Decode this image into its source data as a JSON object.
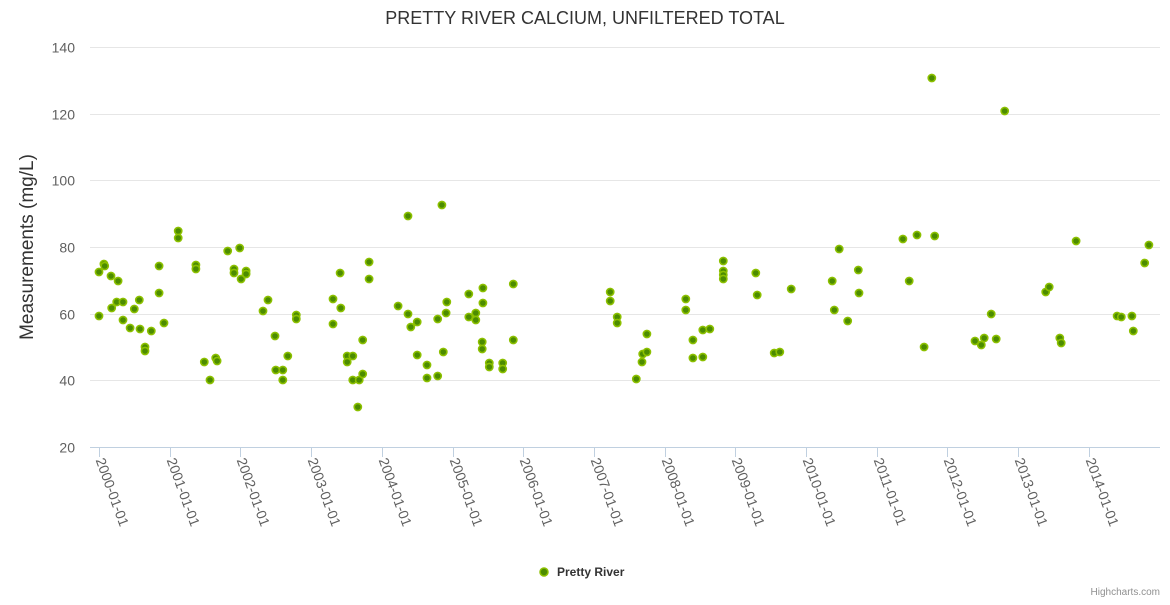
{
  "chart_data": {
    "type": "scatter",
    "title": "PRETTY RIVER CALCIUM, UNFILTERED TOTAL",
    "xlabel": "",
    "ylabel": "Measurements (mg/L)",
    "ylim": [
      20,
      140
    ],
    "yticks": [
      "20",
      "40",
      "60",
      "80",
      "100",
      "120",
      "140"
    ],
    "xlim": [
      2000,
      2015
    ],
    "xticks": [
      "2000-01-01",
      "2001-01-01",
      "2002-01-01",
      "2003-01-01",
      "2004-01-01",
      "2005-01-01",
      "2006-01-01",
      "2007-01-01",
      "2008-01-01",
      "2009-01-01",
      "2010-01-01",
      "2011-01-01",
      "2012-01-01",
      "2013-01-01",
      "2014-01-01"
    ],
    "grid": true,
    "legend_position": "bottom-center",
    "series": [
      {
        "name": "Pretty River",
        "color": "#6aa600",
        "x_units": "year (decimal)",
        "points": [
          [
            2000.0,
            59.3
          ],
          [
            2000.0,
            72.5
          ],
          [
            2000.07,
            74.9
          ],
          [
            2000.08,
            74.3
          ],
          [
            2000.17,
            71.3
          ],
          [
            2000.18,
            61.7
          ],
          [
            2000.27,
            69.8
          ],
          [
            2000.25,
            63.5
          ],
          [
            2000.34,
            63.5
          ],
          [
            2000.34,
            58.1
          ],
          [
            2000.44,
            55.7
          ],
          [
            2000.5,
            61.4
          ],
          [
            2000.57,
            64.1
          ],
          [
            2000.58,
            55.4
          ],
          [
            2000.65,
            50.0
          ],
          [
            2000.65,
            48.8
          ],
          [
            2000.74,
            54.8
          ],
          [
            2000.85,
            74.3
          ],
          [
            2000.85,
            66.2
          ],
          [
            2000.92,
            57.2
          ],
          [
            2001.12,
            84.8
          ],
          [
            2001.12,
            82.7
          ],
          [
            2001.37,
            74.6
          ],
          [
            2001.37,
            73.4
          ],
          [
            2001.49,
            45.5
          ],
          [
            2001.57,
            40.1
          ],
          [
            2001.65,
            46.7
          ],
          [
            2001.67,
            45.8
          ],
          [
            2001.82,
            78.8
          ],
          [
            2001.91,
            73.4
          ],
          [
            2001.91,
            72.2
          ],
          [
            2001.99,
            79.7
          ],
          [
            2002.01,
            70.4
          ],
          [
            2002.08,
            72.8
          ],
          [
            2002.08,
            71.9
          ],
          [
            2002.32,
            60.8
          ],
          [
            2002.39,
            64.1
          ],
          [
            2002.49,
            53.3
          ],
          [
            2002.5,
            43.1
          ],
          [
            2002.6,
            43.1
          ],
          [
            2002.6,
            40.1
          ],
          [
            2002.67,
            47.3
          ],
          [
            2002.79,
            59.6
          ],
          [
            2002.79,
            58.4
          ],
          [
            2003.31,
            64.4
          ],
          [
            2003.31,
            56.9
          ],
          [
            2003.41,
            72.2
          ],
          [
            2003.42,
            61.7
          ],
          [
            2003.51,
            47.3
          ],
          [
            2003.51,
            45.5
          ],
          [
            2003.59,
            47.3
          ],
          [
            2003.59,
            40.1
          ],
          [
            2003.68,
            40.1
          ],
          [
            2003.66,
            32.0
          ],
          [
            2003.73,
            52.1
          ],
          [
            2003.73,
            41.9
          ],
          [
            2003.82,
            75.5
          ],
          [
            2003.82,
            70.4
          ],
          [
            2004.23,
            62.3
          ],
          [
            2004.37,
            89.3
          ],
          [
            2004.37,
            59.9
          ],
          [
            2004.41,
            56.0
          ],
          [
            2004.5,
            57.5
          ],
          [
            2004.5,
            47.6
          ],
          [
            2004.64,
            44.6
          ],
          [
            2004.64,
            40.7
          ],
          [
            2004.79,
            58.4
          ],
          [
            2004.79,
            41.3
          ],
          [
            2004.85,
            92.6
          ],
          [
            2004.87,
            48.5
          ],
          [
            2004.91,
            60.2
          ],
          [
            2004.92,
            63.5
          ],
          [
            2005.23,
            65.9
          ],
          [
            2005.23,
            59.0
          ],
          [
            2005.33,
            60.2
          ],
          [
            2005.33,
            58.1
          ],
          [
            2005.42,
            51.5
          ],
          [
            2005.42,
            49.4
          ],
          [
            2005.43,
            67.7
          ],
          [
            2005.43,
            63.2
          ],
          [
            2005.52,
            45.2
          ],
          [
            2005.52,
            44.0
          ],
          [
            2005.71,
            45.2
          ],
          [
            2005.71,
            43.4
          ],
          [
            2005.86,
            68.9
          ],
          [
            2005.86,
            52.1
          ],
          [
            2007.23,
            66.5
          ],
          [
            2007.23,
            63.8
          ],
          [
            2007.33,
            59.0
          ],
          [
            2007.33,
            57.2
          ],
          [
            2007.6,
            40.4
          ],
          [
            2007.68,
            45.5
          ],
          [
            2007.69,
            47.9
          ],
          [
            2007.75,
            48.5
          ],
          [
            2007.75,
            53.9
          ],
          [
            2008.3,
            64.4
          ],
          [
            2008.3,
            61.1
          ],
          [
            2008.4,
            52.1
          ],
          [
            2008.4,
            46.7
          ],
          [
            2008.54,
            47.0
          ],
          [
            2008.54,
            55.1
          ],
          [
            2008.64,
            55.4
          ],
          [
            2008.83,
            75.8
          ],
          [
            2008.83,
            72.8
          ],
          [
            2008.83,
            71.6
          ],
          [
            2008.83,
            70.4
          ],
          [
            2009.29,
            72.2
          ],
          [
            2009.31,
            65.6
          ],
          [
            2009.55,
            48.2
          ],
          [
            2009.63,
            48.5
          ],
          [
            2009.79,
            67.4
          ],
          [
            2010.37,
            69.8
          ],
          [
            2010.4,
            61.1
          ],
          [
            2010.47,
            79.4
          ],
          [
            2010.59,
            57.8
          ],
          [
            2010.74,
            73.1
          ],
          [
            2010.75,
            66.2
          ],
          [
            2011.37,
            82.4
          ],
          [
            2011.46,
            69.8
          ],
          [
            2011.57,
            83.6
          ],
          [
            2011.67,
            50.0
          ],
          [
            2011.78,
            130.7
          ],
          [
            2011.82,
            83.3
          ],
          [
            2012.39,
            51.8
          ],
          [
            2012.48,
            50.6
          ],
          [
            2012.52,
            52.7
          ],
          [
            2012.62,
            59.9
          ],
          [
            2012.69,
            52.4
          ],
          [
            2012.81,
            120.8
          ],
          [
            2013.39,
            66.5
          ],
          [
            2013.44,
            68.0
          ],
          [
            2013.59,
            52.7
          ],
          [
            2013.61,
            51.2
          ],
          [
            2013.82,
            81.8
          ],
          [
            2014.4,
            59.3
          ],
          [
            2014.46,
            59.0
          ],
          [
            2014.61,
            59.3
          ],
          [
            2014.63,
            54.8
          ],
          [
            2014.79,
            75.2
          ],
          [
            2014.85,
            80.6
          ]
        ]
      }
    ]
  },
  "credits": "Highcharts.com"
}
